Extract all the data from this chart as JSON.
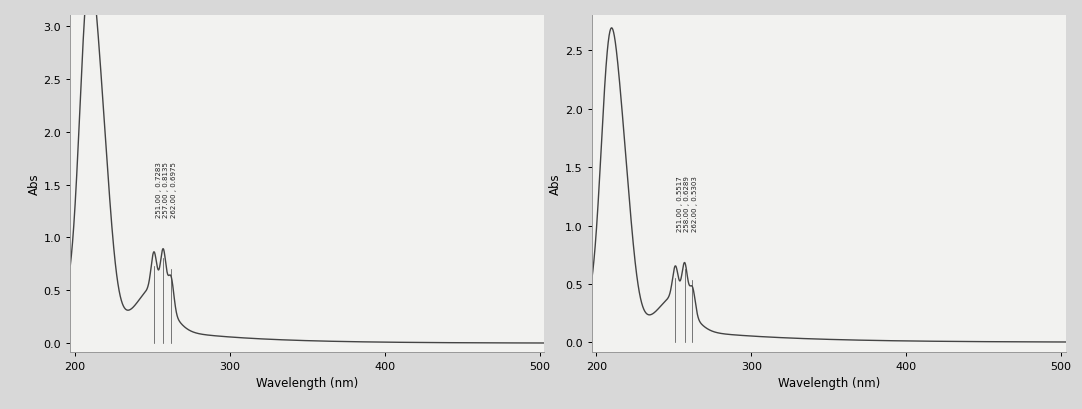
{
  "fig_bg": "#d8d8d8",
  "plot_bg": "#f2f2f0",
  "line_color": "#444444",
  "line_width": 1.0,
  "xlabel": "Wavelength (nm)",
  "ylabel": "Abs",
  "xlim": [
    197,
    503
  ],
  "xticks": [
    200,
    300,
    400,
    500
  ],
  "left_ylim": [
    -0.08,
    3.1
  ],
  "left_yticks": [
    0.0,
    0.5,
    1.0,
    1.5,
    2.0,
    2.5,
    3.0
  ],
  "right_ylim": [
    -0.08,
    2.8
  ],
  "right_yticks": [
    0.0,
    0.5,
    1.0,
    1.5,
    2.0,
    2.5
  ],
  "left_ann_text": "251.00 , 0.7283\n257.00 , 0.8135\n262.00 , 0.6975",
  "right_ann_text": "251.00 , 0.5517\n258.00 , 0.6289\n262.00 , 0.5303",
  "annotation_fontsize": 5.0
}
